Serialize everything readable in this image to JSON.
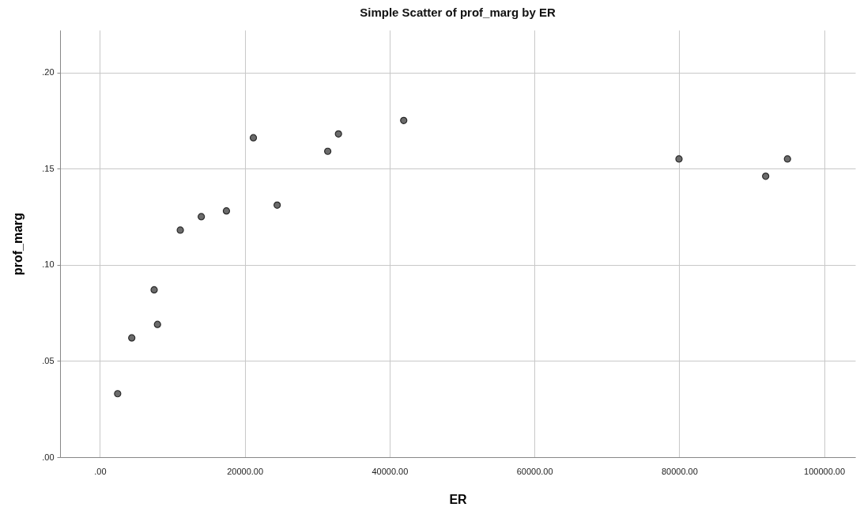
{
  "chart_data": {
    "type": "scatter",
    "title": "Simple Scatter of prof_marg by  ER",
    "xlabel": "ER",
    "ylabel": "prof_marg",
    "x": [
      2450,
      4400,
      7950,
      7490,
      11100,
      14000,
      17470,
      21190,
      24480,
      31460,
      32940,
      41950,
      79960,
      94940,
      91930
    ],
    "series": [
      {
        "color": "#6b6b6b",
        "values": [
          0.033,
          0.062,
          0.069,
          0.087,
          0.118,
          0.125,
          0.128,
          0.166,
          0.131,
          0.159,
          0.168,
          0.175,
          0.155,
          0.155,
          0.146
        ]
      }
    ],
    "xlim": [
      -5500,
      104300
    ],
    "ylim": [
      0,
      0.222
    ],
    "xticks": [
      {
        "value": 0,
        "label": ".00"
      },
      {
        "value": 20000,
        "label": "20000.00"
      },
      {
        "value": 40000,
        "label": "40000.00"
      },
      {
        "value": 60000,
        "label": "60000.00"
      },
      {
        "value": 80000,
        "label": "80000.00"
      },
      {
        "value": 100000,
        "label": "100000.00"
      }
    ],
    "yticks": [
      {
        "value": 0,
        "label": ".00"
      },
      {
        "value": 0.05,
        "label": ".05"
      },
      {
        "value": 0.1,
        "label": ".10"
      },
      {
        "value": 0.15,
        "label": ".15"
      },
      {
        "value": 0.2,
        "label": ".20"
      }
    ],
    "grid": true,
    "marker": "circle"
  }
}
